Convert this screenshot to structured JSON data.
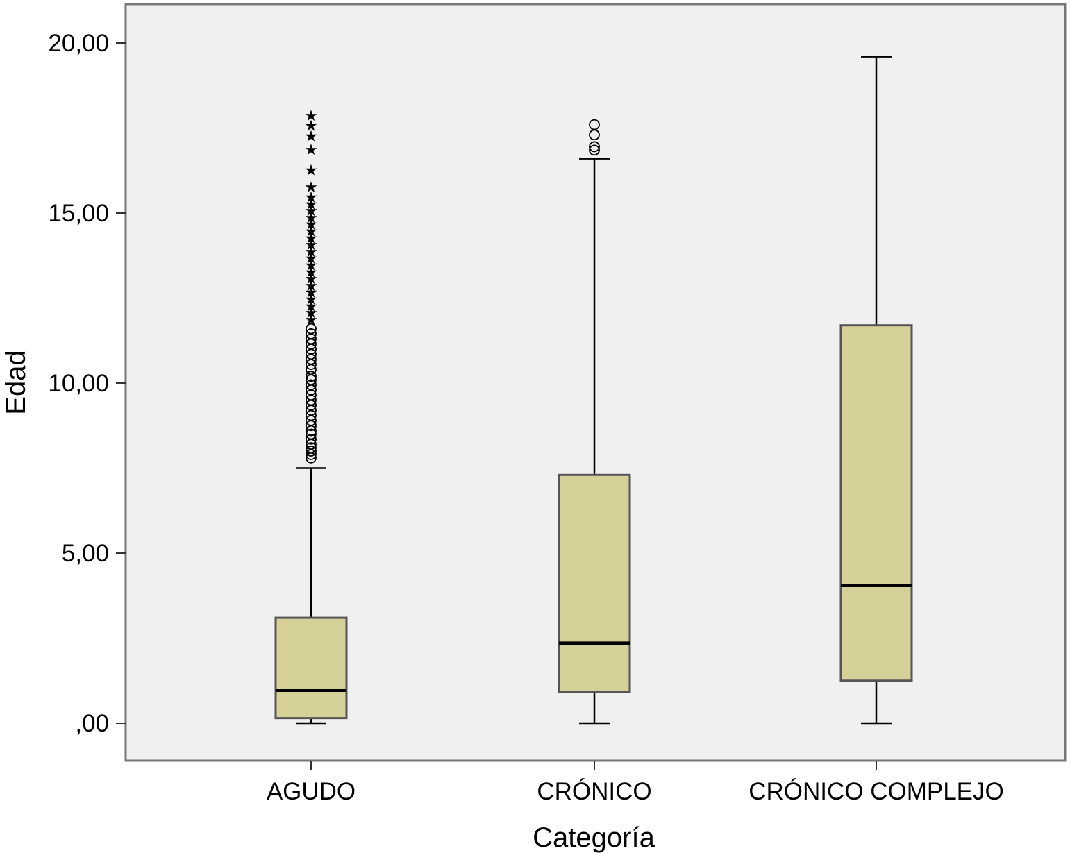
{
  "chart_data": {
    "type": "boxplot",
    "xlabel": "Categoría",
    "ylabel": "Edad",
    "ylim": [
      -1.1,
      21.2
    ],
    "yticks": [
      {
        "value": 0,
        "label": ",00"
      },
      {
        "value": 5,
        "label": "5,00"
      },
      {
        "value": 10,
        "label": "10,00"
      },
      {
        "value": 15,
        "label": "15,00"
      },
      {
        "value": 20,
        "label": "20,00"
      }
    ],
    "grid": false,
    "categories": [
      "AGUDO",
      "CRÓNICO",
      "CRÓNICO COMPLEJO"
    ],
    "boxes": [
      {
        "category": "AGUDO",
        "whisker_low": 0.0,
        "q1": 0.15,
        "median": 0.97,
        "q3": 3.1,
        "whisker_high": 7.5,
        "outliers": [
          7.8,
          7.9,
          8.0,
          8.1,
          8.2,
          8.35,
          8.5,
          8.6,
          8.75,
          8.9,
          9.05,
          9.2,
          9.35,
          9.5,
          9.65,
          9.8,
          9.95,
          10.1,
          10.2,
          10.4,
          10.55,
          10.7,
          10.85,
          11.0,
          11.15,
          11.3,
          11.45,
          11.6
        ],
        "extremes": [
          11.9,
          12.1,
          12.3,
          12.5,
          12.7,
          12.9,
          13.1,
          13.3,
          13.5,
          13.7,
          13.9,
          14.1,
          14.3,
          14.5,
          14.7,
          14.9,
          15.1,
          15.3,
          15.5,
          15.8,
          16.3,
          16.9,
          17.3,
          17.6,
          17.9
        ]
      },
      {
        "category": "CRÓNICO",
        "whisker_low": 0.0,
        "q1": 0.92,
        "median": 2.35,
        "q3": 7.3,
        "whisker_high": 16.6,
        "outliers": [
          16.85,
          16.95,
          17.3,
          17.6
        ],
        "extremes": []
      },
      {
        "category": "CRÓNICO COMPLEJO",
        "whisker_low": 0.0,
        "q1": 1.25,
        "median": 4.05,
        "q3": 11.7,
        "whisker_high": 19.6,
        "outliers": [],
        "extremes": []
      }
    ],
    "colors": {
      "box_fill": "#d5cf98",
      "box_stroke": "#555555",
      "plot_background": "#f0f0f0",
      "frame": "#777777",
      "marks": "#000000"
    }
  }
}
